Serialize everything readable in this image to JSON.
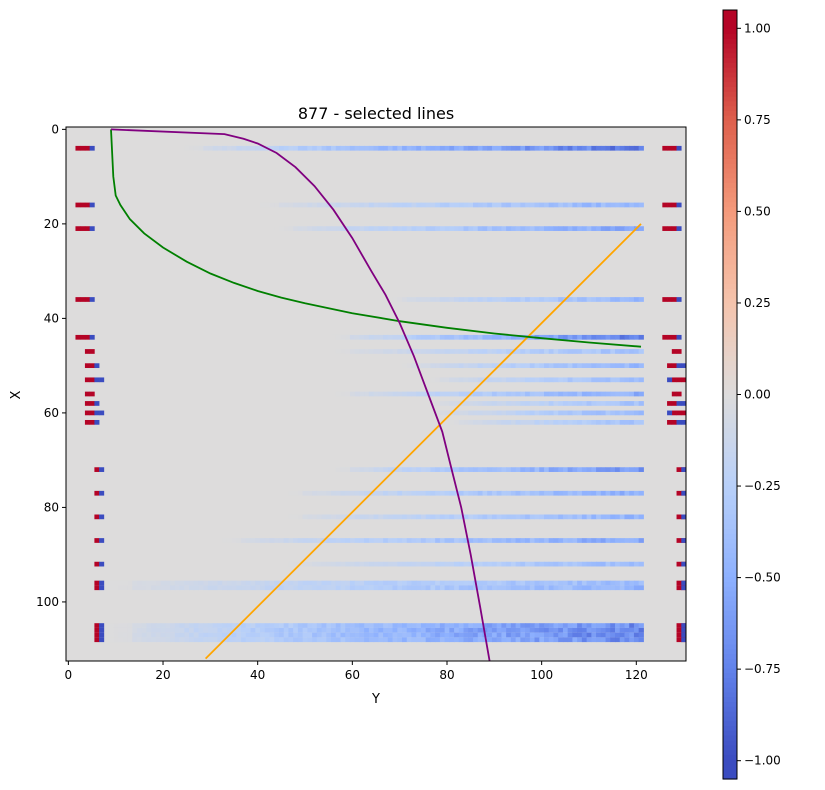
{
  "chart_data": [
    {
      "type": "heatmap",
      "title": "877 - selected lines",
      "xlabel": "Y",
      "ylabel": "X",
      "xlim": [
        -0.5,
        130.5
      ],
      "ylim": [
        112.5,
        -0.5
      ],
      "x_ticks": [
        0,
        20,
        40,
        60,
        80,
        100,
        120
      ],
      "y_ticks": [
        0,
        20,
        40,
        60,
        80,
        100
      ],
      "background_value": 0.0,
      "colormap": "coolwarm",
      "rows": [
        {
          "x": 4,
          "left_red": [
            2,
            4
          ],
          "left_blue": [
            5,
            5
          ],
          "fade_start": 24,
          "peak": -0.85,
          "right_red": [
            126,
            128
          ],
          "right_blue": [
            129,
            129
          ]
        },
        {
          "x": 16,
          "left_red": [
            2,
            4
          ],
          "left_blue": [
            5,
            5
          ],
          "fade_start": 40,
          "peak": -0.5,
          "right_red": [
            126,
            128
          ],
          "right_blue": [
            129,
            129
          ]
        },
        {
          "x": 21,
          "left_red": [
            2,
            4
          ],
          "left_blue": [
            5,
            5
          ],
          "fade_start": 44,
          "peak": -0.6,
          "right_red": [
            126,
            128
          ],
          "right_blue": [
            129,
            129
          ]
        },
        {
          "x": 36,
          "left_red": [
            2,
            4
          ],
          "left_blue": [
            5,
            5
          ],
          "fade_start": 68,
          "peak": -0.5,
          "right_red": [
            126,
            128
          ],
          "right_blue": [
            129,
            129
          ]
        },
        {
          "x": 44,
          "left_red": [
            2,
            4
          ],
          "left_blue": [
            5,
            5
          ],
          "fade_start": 56,
          "peak": -0.8,
          "right_red": [
            126,
            128
          ],
          "right_blue": [
            129,
            129
          ]
        },
        {
          "x": 47,
          "left_red": [
            4,
            5
          ],
          "left_blue": [],
          "fade_start": 56,
          "peak": -0.4,
          "right_red": [
            128,
            129
          ],
          "right_blue": []
        },
        {
          "x": 50,
          "left_red": [
            4,
            5
          ],
          "left_blue": [
            6,
            6
          ],
          "fade_start": 70,
          "peak": -0.5,
          "right_red": [
            127,
            128
          ],
          "right_blue": [
            129,
            130
          ]
        },
        {
          "x": 53,
          "left_red": [
            4,
            5
          ],
          "left_blue": [
            6,
            7
          ],
          "fade_start": 76,
          "peak": -0.45,
          "right_red": [
            128,
            130
          ],
          "right_blue": [
            127,
            127
          ]
        },
        {
          "x": 56,
          "left_red": [
            4,
            5
          ],
          "left_blue": [],
          "fade_start": 56,
          "peak": -0.55,
          "right_red": [
            128,
            129
          ],
          "right_blue": []
        },
        {
          "x": 58,
          "left_red": [
            4,
            5
          ],
          "left_blue": [
            6,
            6
          ],
          "fade_start": 76,
          "peak": -0.4,
          "right_red": [
            127,
            128
          ],
          "right_blue": [
            129,
            130
          ]
        },
        {
          "x": 60,
          "left_red": [
            4,
            5
          ],
          "left_blue": [
            6,
            7
          ],
          "fade_start": 76,
          "peak": -0.45,
          "right_red": [
            128,
            130
          ],
          "right_blue": [
            127,
            127
          ]
        },
        {
          "x": 62,
          "left_red": [
            4,
            5
          ],
          "left_blue": [
            6,
            6
          ],
          "fade_start": 80,
          "peak": -0.4,
          "right_red": [
            127,
            128
          ],
          "right_blue": [
            129,
            130
          ]
        },
        {
          "x": 72,
          "left_red": [
            6,
            6
          ],
          "left_blue": [
            7,
            7
          ],
          "fade_start": 56,
          "peak": -0.7,
          "right_red": [
            129,
            130
          ],
          "right_blue": [
            130,
            130
          ]
        },
        {
          "x": 77,
          "left_red": [
            6,
            6
          ],
          "left_blue": [
            7,
            7
          ],
          "fade_start": 46,
          "peak": -0.55,
          "right_red": [
            129,
            130
          ],
          "right_blue": [
            130,
            130
          ]
        },
        {
          "x": 82,
          "left_red": [
            6,
            6
          ],
          "left_blue": [
            7,
            7
          ],
          "fade_start": 46,
          "peak": -0.5,
          "right_red": [
            129,
            130
          ],
          "right_blue": [
            130,
            130
          ]
        },
        {
          "x": 87,
          "left_red": [
            6,
            6
          ],
          "left_blue": [
            7,
            7
          ],
          "fade_start": 32,
          "peak": -0.6,
          "right_red": [
            129,
            130
          ],
          "right_blue": [
            130,
            130
          ]
        },
        {
          "x": 92,
          "left_red": [
            6,
            6
          ],
          "left_blue": [
            7,
            7
          ],
          "fade_start": 46,
          "peak": -0.45,
          "right_red": [
            129,
            130
          ],
          "right_blue": [
            130,
            130
          ]
        },
        {
          "x": 96,
          "left_red": [
            6,
            6
          ],
          "left_blue": [
            7,
            7
          ],
          "fade_start": 8,
          "peak": -0.45,
          "right_red": [
            129,
            130
          ],
          "right_blue": [
            130,
            130
          ]
        },
        {
          "x": 97,
          "left_red": [
            6,
            6
          ],
          "left_blue": [
            7,
            7
          ],
          "fade_start": 8,
          "peak": -0.5,
          "right_red": [
            129,
            130
          ],
          "right_blue": [
            130,
            130
          ]
        },
        {
          "x": 105,
          "left_red": [
            6,
            6
          ],
          "left_blue": [
            7,
            7
          ],
          "fade_start": 8,
          "peak": -0.75,
          "right_red": [
            129,
            130
          ],
          "right_blue": [
            130,
            130
          ]
        },
        {
          "x": 106,
          "left_red": [
            6,
            6
          ],
          "left_blue": [
            7,
            7
          ],
          "fade_start": 8,
          "peak": -0.8,
          "right_red": [
            129,
            130
          ],
          "right_blue": [
            130,
            130
          ]
        },
        {
          "x": 107,
          "left_red": [
            6,
            6
          ],
          "left_blue": [
            7,
            7
          ],
          "fade_start": 8,
          "peak": -0.8,
          "right_red": [
            129,
            130
          ],
          "right_blue": [
            130,
            130
          ]
        },
        {
          "x": 108,
          "left_red": [
            6,
            6
          ],
          "left_blue": [
            7,
            7
          ],
          "fade_start": 8,
          "peak": -0.75,
          "right_red": [
            129,
            130
          ],
          "right_blue": [
            130,
            130
          ]
        }
      ],
      "band_end": 121,
      "lines": [
        {
          "name": "orange",
          "color": "#ffa500",
          "points": [
            [
              29,
              112
            ],
            [
              121,
              20
            ]
          ]
        },
        {
          "name": "green",
          "color": "#008000",
          "points": [
            [
              9,
              0
            ],
            [
              9.5,
              10
            ],
            [
              10,
              14
            ],
            [
              11,
              16
            ],
            [
              13,
              19
            ],
            [
              16,
              22
            ],
            [
              20,
              25
            ],
            [
              25,
              28
            ],
            [
              30,
              30.5
            ],
            [
              35,
              32.5
            ],
            [
              40,
              34.2
            ],
            [
              45,
              35.6
            ],
            [
              50,
              36.8
            ],
            [
              60,
              38.9
            ],
            [
              70,
              40.6
            ],
            [
              80,
              42
            ],
            [
              90,
              43.2
            ],
            [
              100,
              44.2
            ],
            [
              110,
              45.1
            ],
            [
              121,
              46
            ]
          ]
        },
        {
          "name": "purple",
          "color": "#800080",
          "points": [
            [
              9,
              0
            ],
            [
              33,
              1
            ],
            [
              37,
              2
            ],
            [
              40,
              3
            ],
            [
              44,
              5
            ],
            [
              48,
              8
            ],
            [
              52,
              12
            ],
            [
              56,
              17
            ],
            [
              60,
              23
            ],
            [
              64,
              30
            ],
            [
              67,
              35
            ],
            [
              70,
              41
            ],
            [
              73,
              48
            ],
            [
              76,
              56
            ],
            [
              79,
              64
            ],
            [
              81,
              72
            ],
            [
              83,
              80
            ],
            [
              85,
              90
            ],
            [
              87,
              101
            ],
            [
              89,
              112.5
            ]
          ]
        }
      ]
    },
    {
      "type": "colorbar",
      "colormap": "coolwarm",
      "vmin": -1.05,
      "vmax": 1.05,
      "ticks": [
        -1.0,
        -0.75,
        -0.5,
        -0.25,
        0.0,
        0.25,
        0.5,
        0.75,
        1.0
      ],
      "tick_labels": [
        "−1.00",
        "−0.75",
        "−0.50",
        "−0.25",
        "0.00",
        "0.25",
        "0.50",
        "0.75",
        "1.00"
      ]
    }
  ],
  "colors": {
    "axis": "#000000",
    "background": "#ffffff"
  }
}
